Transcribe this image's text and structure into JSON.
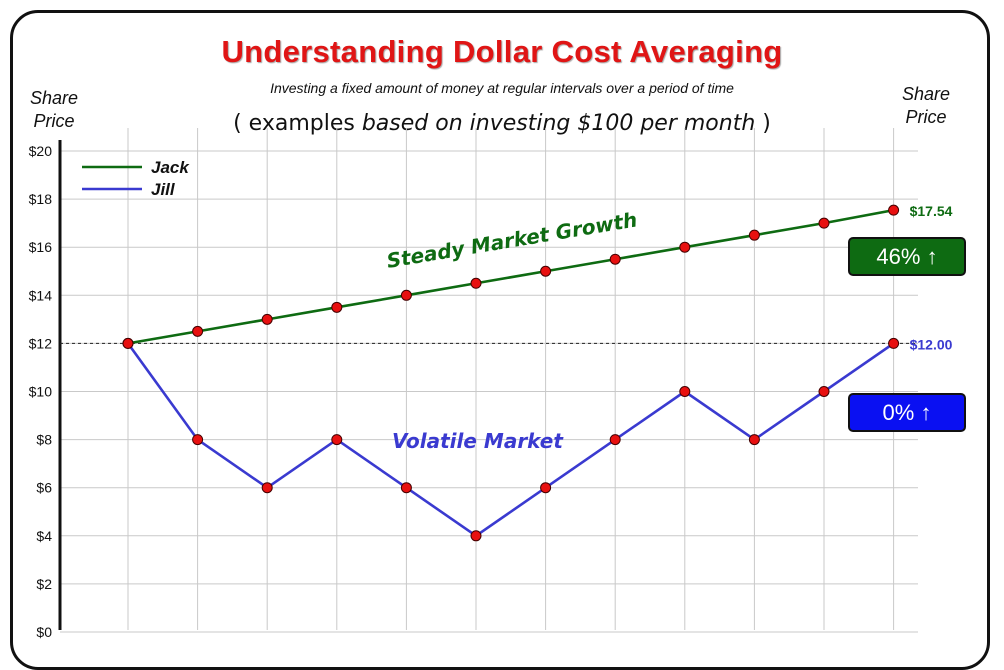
{
  "title": "Understanding Dollar Cost Averaging",
  "subtitle": "Investing a fixed amount of money at regular intervals over a period of time",
  "example": {
    "open": "( examples",
    "italic": "based on investing $100 per month",
    "close": ")"
  },
  "axis_left_title": [
    "Share",
    "Price"
  ],
  "axis_right_title": [
    "Share",
    "Price"
  ],
  "badges": {
    "jack": "46% ↑",
    "jill": "0% ↑"
  },
  "annotations": {
    "jack": "Steady Market Growth",
    "jill": "Volatile Market"
  },
  "end_labels": {
    "jack": "$17.54",
    "jill": "$12.00"
  },
  "colors": {
    "jack": "#0e6b12",
    "jill": "#3a3ad0",
    "marker": "#e81010",
    "title": "#e01515"
  },
  "chart_data": {
    "type": "line",
    "x": [
      1,
      2,
      3,
      4,
      5,
      6,
      7,
      8,
      9,
      10,
      11,
      12
    ],
    "series": [
      {
        "name": "Jack",
        "values": [
          12.0,
          12.5,
          13.0,
          13.5,
          14.0,
          14.5,
          15.0,
          15.5,
          16.0,
          16.5,
          17.0,
          17.54
        ]
      },
      {
        "name": "Jill",
        "values": [
          12,
          8,
          6,
          8,
          6,
          4,
          6,
          8,
          10,
          8,
          10,
          12
        ]
      }
    ],
    "yticks": [
      "$0",
      "$2",
      "$4",
      "$6",
      "$8",
      "$10",
      "$12",
      "$14",
      "$16",
      "$18",
      "$20"
    ],
    "ylim": [
      0,
      20
    ],
    "reference_line": 12,
    "grid": true,
    "legend": "top-left"
  }
}
